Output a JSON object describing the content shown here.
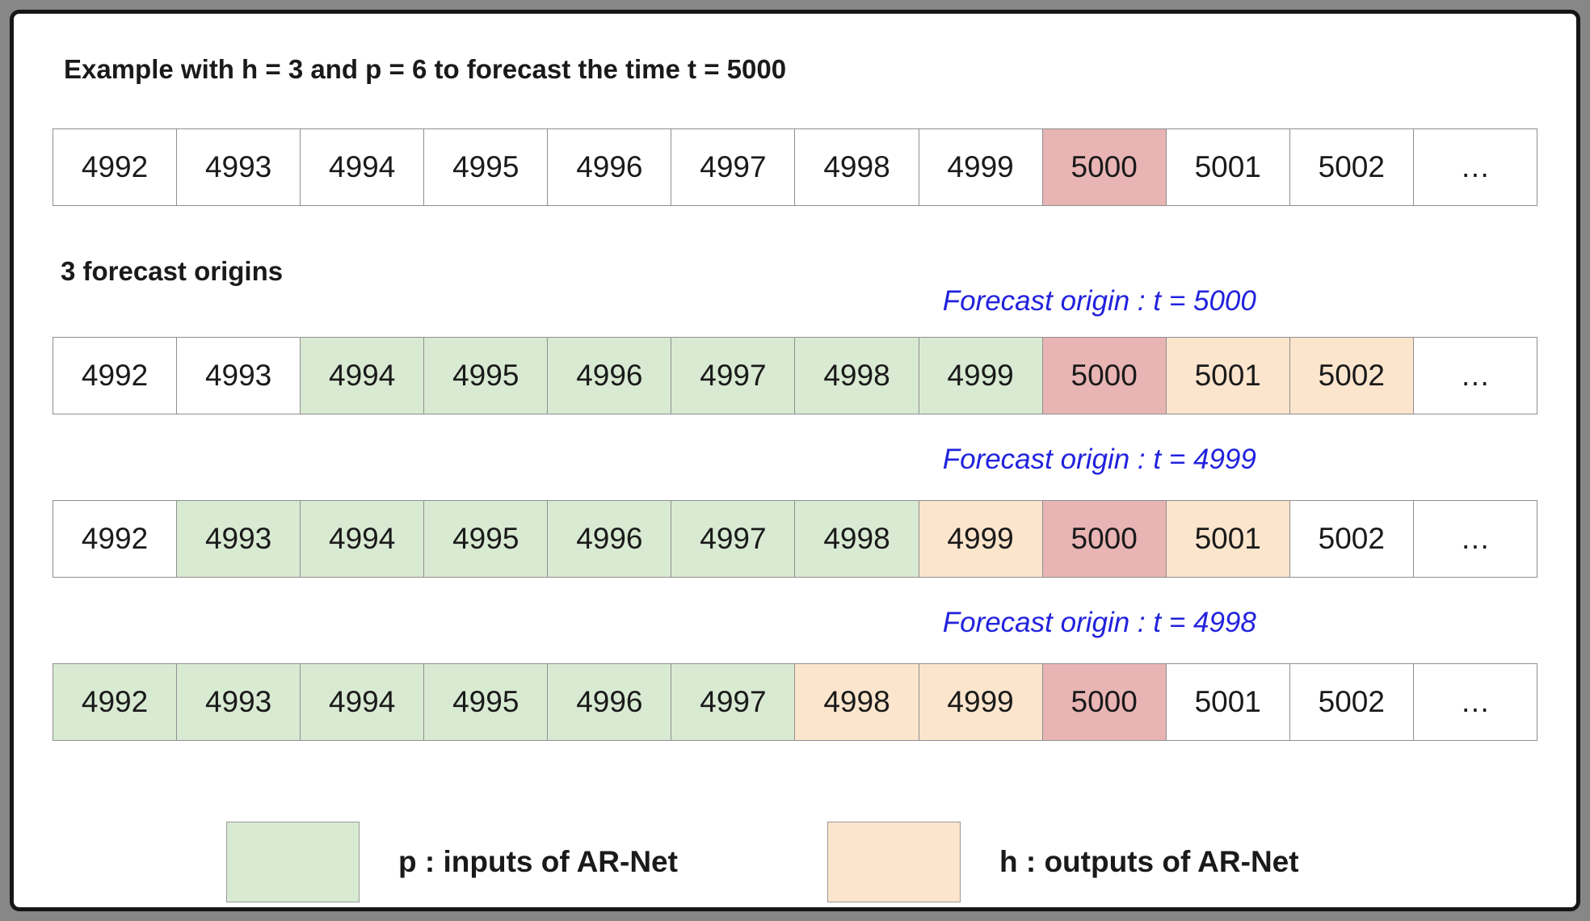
{
  "title": "Example with h = 3 and p = 6 to forecast the time t = 5000",
  "origins_label": "3 forecast origins",
  "colors": {
    "input": "#d9ead3",
    "output": "#fce5cd",
    "target": "#e8b4b4",
    "forecast_label": "#2222dd",
    "cell_border": "#8f8f8f"
  },
  "timeline": {
    "cells": [
      {
        "value": "4992",
        "type": "plain"
      },
      {
        "value": "4993",
        "type": "plain"
      },
      {
        "value": "4994",
        "type": "plain"
      },
      {
        "value": "4995",
        "type": "plain"
      },
      {
        "value": "4996",
        "type": "plain"
      },
      {
        "value": "4997",
        "type": "plain"
      },
      {
        "value": "4998",
        "type": "plain"
      },
      {
        "value": "4999",
        "type": "plain"
      },
      {
        "value": "5000",
        "type": "target"
      },
      {
        "value": "5001",
        "type": "plain"
      },
      {
        "value": "5002",
        "type": "plain"
      },
      {
        "value": "…",
        "type": "plain"
      }
    ]
  },
  "forecast_rows": [
    {
      "label": "Forecast origin : t = 5000",
      "cells": [
        {
          "value": "4992",
          "type": "plain"
        },
        {
          "value": "4993",
          "type": "plain"
        },
        {
          "value": "4994",
          "type": "input"
        },
        {
          "value": "4995",
          "type": "input"
        },
        {
          "value": "4996",
          "type": "input"
        },
        {
          "value": "4997",
          "type": "input"
        },
        {
          "value": "4998",
          "type": "input"
        },
        {
          "value": "4999",
          "type": "input"
        },
        {
          "value": "5000",
          "type": "target"
        },
        {
          "value": "5001",
          "type": "output"
        },
        {
          "value": "5002",
          "type": "output"
        },
        {
          "value": "…",
          "type": "plain"
        }
      ]
    },
    {
      "label": "Forecast origin : t = 4999",
      "cells": [
        {
          "value": "4992",
          "type": "plain"
        },
        {
          "value": "4993",
          "type": "input"
        },
        {
          "value": "4994",
          "type": "input"
        },
        {
          "value": "4995",
          "type": "input"
        },
        {
          "value": "4996",
          "type": "input"
        },
        {
          "value": "4997",
          "type": "input"
        },
        {
          "value": "4998",
          "type": "input"
        },
        {
          "value": "4999",
          "type": "output"
        },
        {
          "value": "5000",
          "type": "target"
        },
        {
          "value": "5001",
          "type": "output"
        },
        {
          "value": "5002",
          "type": "plain"
        },
        {
          "value": "…",
          "type": "plain"
        }
      ]
    },
    {
      "label": "Forecast origin : t = 4998",
      "cells": [
        {
          "value": "4992",
          "type": "input"
        },
        {
          "value": "4993",
          "type": "input"
        },
        {
          "value": "4994",
          "type": "input"
        },
        {
          "value": "4995",
          "type": "input"
        },
        {
          "value": "4996",
          "type": "input"
        },
        {
          "value": "4997",
          "type": "input"
        },
        {
          "value": "4998",
          "type": "output"
        },
        {
          "value": "4999",
          "type": "output"
        },
        {
          "value": "5000",
          "type": "target"
        },
        {
          "value": "5001",
          "type": "plain"
        },
        {
          "value": "5002",
          "type": "plain"
        },
        {
          "value": "…",
          "type": "plain"
        }
      ]
    }
  ],
  "legend": {
    "input_label": "p : inputs of AR-Net",
    "output_label": "h : outputs of AR-Net"
  }
}
